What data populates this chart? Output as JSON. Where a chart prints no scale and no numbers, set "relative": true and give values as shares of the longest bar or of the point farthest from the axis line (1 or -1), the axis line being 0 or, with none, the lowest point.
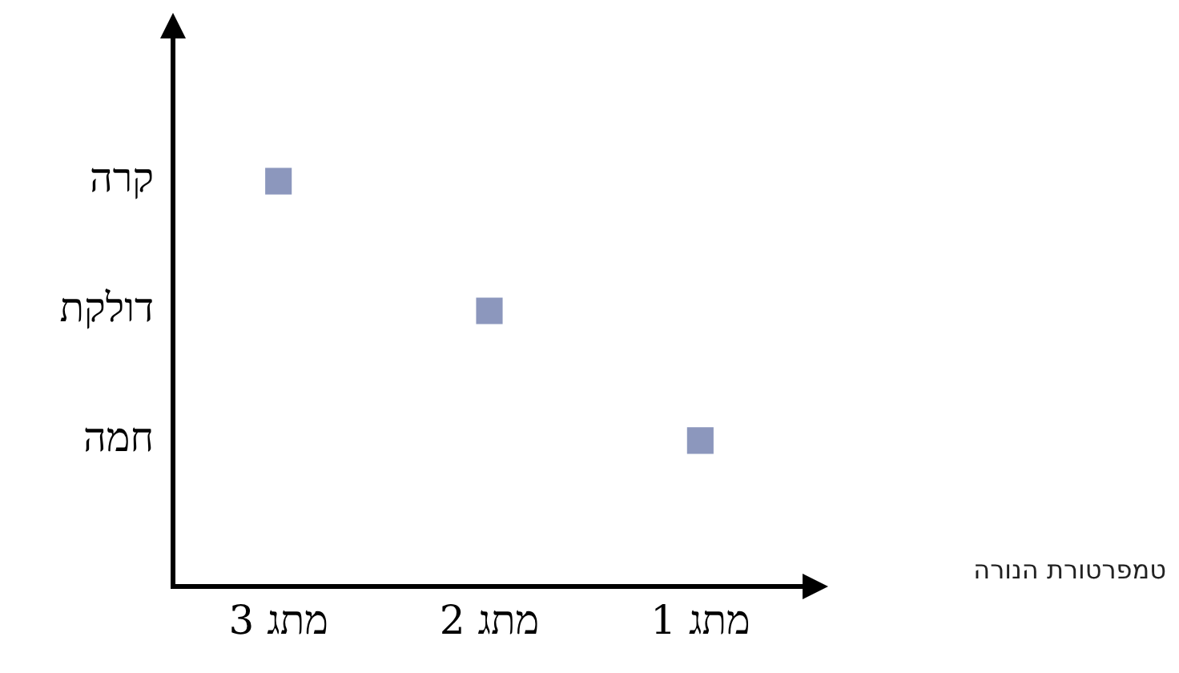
{
  "chart_data": {
    "type": "scatter",
    "categories": [
      "מתג 3",
      "מתג 2",
      "מתג 1"
    ],
    "values": [
      1,
      0.68,
      0.36
    ],
    "relative": true,
    "annotations": [
      "קרה",
      "דולקת",
      "חמה",
      "טמפרטורת הנורה"
    ],
    "color": "#8c97bd",
    "marker": "square",
    "grid": false,
    "legend": false
  }
}
